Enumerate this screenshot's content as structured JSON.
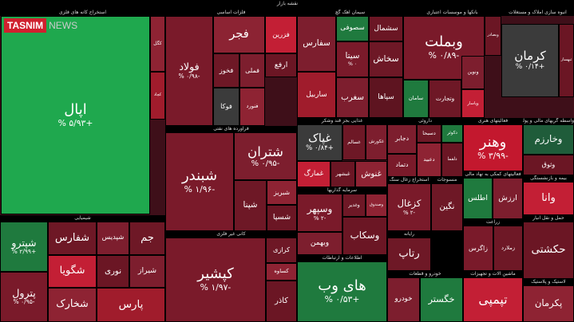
{
  "header": {
    "brand": "TASNIM",
    "brand_suffix": "NEWS",
    "title": "نقشه بازار"
  },
  "sectors": [
    {
      "title": "استخراج کانه های فلزی",
      "tiles": [
        {
          "name": "اپال",
          "change": "+۵/۹۳ %",
          "color": "#1fa84e"
        },
        {
          "name": "کگل",
          "color": "#8e2333"
        },
        {
          "name": "کچاد",
          "color": "#a01c2c"
        }
      ]
    },
    {
      "title": "فلزات اساسی",
      "tiles": [
        {
          "name": "فولاد",
          "change": "-۰/۹۸ %",
          "color": "#7a1a2a"
        },
        {
          "name": "فجر",
          "color": "#8c2333"
        },
        {
          "name": "فزرین",
          "color": "#c31f35"
        },
        {
          "name": "فخوز",
          "color": "#6e1826"
        },
        {
          "name": "فملی",
          "color": "#7d1e2e"
        },
        {
          "name": "ارفع",
          "color": "#6b1624"
        },
        {
          "name": "فوکا",
          "color": "#3b3b3b"
        },
        {
          "name": "فنورد",
          "color": "#8e2333"
        }
      ]
    },
    {
      "title": "سیمان آهک گچ",
      "tiles": [
        {
          "name": "سفارس",
          "color": "#7d1e2e"
        },
        {
          "name": "سصوفی",
          "color": "#1f7a3e"
        },
        {
          "name": "سشمال",
          "color": "#6b1624"
        },
        {
          "name": "سیتا",
          "change": "۰ %",
          "color": "#7a1a2a"
        },
        {
          "name": "ساربیل",
          "color": "#a01c2c"
        },
        {
          "name": "سخاش",
          "color": "#6e1826"
        },
        {
          "name": "سغرب",
          "color": "#7d1e2e"
        },
        {
          "name": "سپاها",
          "color": "#5e1420"
        }
      ]
    },
    {
      "title": "بانکها و موسسات اعتباری",
      "tiles": [
        {
          "name": "وبملت",
          "change": "-۰/۸۹ %",
          "color": "#7a1a2a"
        },
        {
          "name": "سامان",
          "color": "#1f7a3e"
        },
        {
          "name": "وتجارت",
          "color": "#6e1826"
        },
        {
          "name": "ونوین",
          "color": "#7d1e2e"
        },
        {
          "name": "وپاسار",
          "color": "#c31f35"
        },
        {
          "name": "وبصادر",
          "color": "#6b1624"
        }
      ]
    },
    {
      "title": "انبوه سازی املاک و مستغلات",
      "tiles": [
        {
          "name": "کرمان",
          "change": "+۰/۱۴ %",
          "color": "#3b3b3b"
        },
        {
          "name": "ثبهساز",
          "color": "#6b1624"
        }
      ]
    },
    {
      "title": "فراورده های نفتی",
      "tiles": [
        {
          "name": "شبندر",
          "change": "-۱/۹۶ %",
          "color": "#7a1a2a"
        },
        {
          "name": "شتران",
          "change": "-۰/۹۵ %",
          "color": "#7d1e2e"
        },
        {
          "name": "شپنا",
          "color": "#6e1826"
        },
        {
          "name": "شبریز",
          "color": "#8e2333"
        },
        {
          "name": "شسپا",
          "color": "#6b1624"
        }
      ]
    },
    {
      "title": "غذایی بجز قند وشکر",
      "tiles": [
        {
          "name": "غپاک",
          "change": "+۰/۸۴ %",
          "color": "#3b3b3b"
        },
        {
          "name": "غسالم",
          "color": "#6e1826"
        },
        {
          "name": "غکورش",
          "color": "#7d1e2e"
        },
        {
          "name": "غمارگ",
          "color": "#c31f35"
        },
        {
          "name": "غبشهر",
          "color": "#6b1624"
        },
        {
          "name": "غنوش",
          "color": "#8e2333"
        }
      ]
    },
    {
      "title": "داروئی",
      "tiles": [
        {
          "name": "دجابر",
          "color": "#7d1e2e"
        },
        {
          "name": "دسبحا",
          "color": "#6e1826"
        },
        {
          "name": "دکوثر",
          "color": "#1f7a3e"
        },
        {
          "name": "دعبید",
          "color": "#8e2333"
        },
        {
          "name": "دلقما",
          "color": "#6b1624"
        },
        {
          "name": "دتماد",
          "color": "#7a1a2a"
        }
      ]
    },
    {
      "title": "فعالیتهای هنری",
      "tiles": [
        {
          "name": "وهنر",
          "change": "-۳/۹۹ %",
          "color": "#c3182e"
        }
      ]
    },
    {
      "title": "واسطه گریهای مالی و پولی",
      "tiles": [
        {
          "name": "وخارزم",
          "color": "#1f5c3a"
        },
        {
          "name": "وثوق",
          "color": "#6b1624"
        }
      ]
    },
    {
      "title": "سرمایه گذاریها",
      "tiles": [
        {
          "name": "وسپهر",
          "change": "-۲ %",
          "color": "#7a1a2a"
        },
        {
          "name": "وغدیر",
          "color": "#6e1826"
        },
        {
          "name": "وصندوق",
          "color": "#8e2333"
        },
        {
          "name": "وسکاب",
          "color": "#6b1624"
        },
        {
          "name": "وبهمن",
          "color": "#7d1e2e"
        }
      ]
    },
    {
      "title": "استخراج زغال سنگ",
      "tiles": [
        {
          "name": "کزغال",
          "change": "-۲ %",
          "color": "#7a1a2a"
        }
      ]
    },
    {
      "title": "منسوجات",
      "tiles": [
        {
          "name": "نگین",
          "color": "#6e1826"
        }
      ]
    },
    {
      "title": "فعالیتهای کمکی به نهاد مالی",
      "tiles": [
        {
          "name": "اطلس",
          "color": "#1f7a3e"
        },
        {
          "name": "ارزش",
          "color": "#7d1e2e"
        }
      ]
    },
    {
      "title": "بیمه و بازنشستگی",
      "tiles": [
        {
          "name": "وانا",
          "color": "#c31f35"
        }
      ]
    },
    {
      "title": "شیمیایی",
      "tiles": [
        {
          "name": "شپترو",
          "change": "+۲/۹۹ %",
          "color": "#1f7a3e"
        },
        {
          "name": "پترول",
          "change": "-۰/۹۵ %",
          "color": "#7a1a2a"
        },
        {
          "name": "شفارس",
          "color": "#6e1826"
        },
        {
          "name": "شگویا",
          "color": "#c31f35"
        },
        {
          "name": "شپدیس",
          "color": "#7d1e2e"
        },
        {
          "name": "نوری",
          "color": "#6b1624"
        },
        {
          "name": "شخارک",
          "color": "#8e2333"
        },
        {
          "name": "جم",
          "color": "#6e1826"
        },
        {
          "name": "شیراز",
          "color": "#7d1e2e"
        },
        {
          "name": "پارس",
          "color": "#a01c2c"
        }
      ]
    },
    {
      "title": "کانی غیر فلزی",
      "tiles": [
        {
          "name": "کپشیر",
          "change": "-۱/۹۷ %",
          "color": "#7a1a2a"
        },
        {
          "name": "کرازی",
          "color": "#6e1826"
        },
        {
          "name": "کساوه",
          "color": "#8e2333"
        },
        {
          "name": "کاذر",
          "color": "#6b1624"
        }
      ]
    },
    {
      "title": "اطلاعات و ارتباطات",
      "tiles": [
        {
          "name": "های وب",
          "change": "+۰/۵۳ %",
          "color": "#1f7a3e"
        }
      ]
    },
    {
      "title": "رایانه",
      "tiles": [
        {
          "name": "رتاپ",
          "color": "#6e1826"
        }
      ]
    },
    {
      "title": "خودرو و قطعات",
      "tiles": [
        {
          "name": "خودرو",
          "color": "#7d1e2e"
        },
        {
          "name": "خگستر",
          "color": "#1f7a3e"
        }
      ]
    },
    {
      "title": "حمل و نقل انبار",
      "tiles": [
        {
          "name": "حکشتی",
          "color": "#6b1624"
        }
      ]
    },
    {
      "title": "لاستیک و پلاستیک",
      "tiles": [
        {
          "name": "پکرمان",
          "color": "#8e2333"
        }
      ]
    },
    {
      "title": "زراعت",
      "tiles": [
        {
          "name": "زاگرس",
          "color": "#7a1a2a"
        },
        {
          "name": "زملارد",
          "color": "#6e1826"
        }
      ]
    },
    {
      "title": "ماشین آلات و تجهیزات",
      "tiles": [
        {
          "name": "تپمپی",
          "color": "#c31f35"
        }
      ]
    }
  ]
}
